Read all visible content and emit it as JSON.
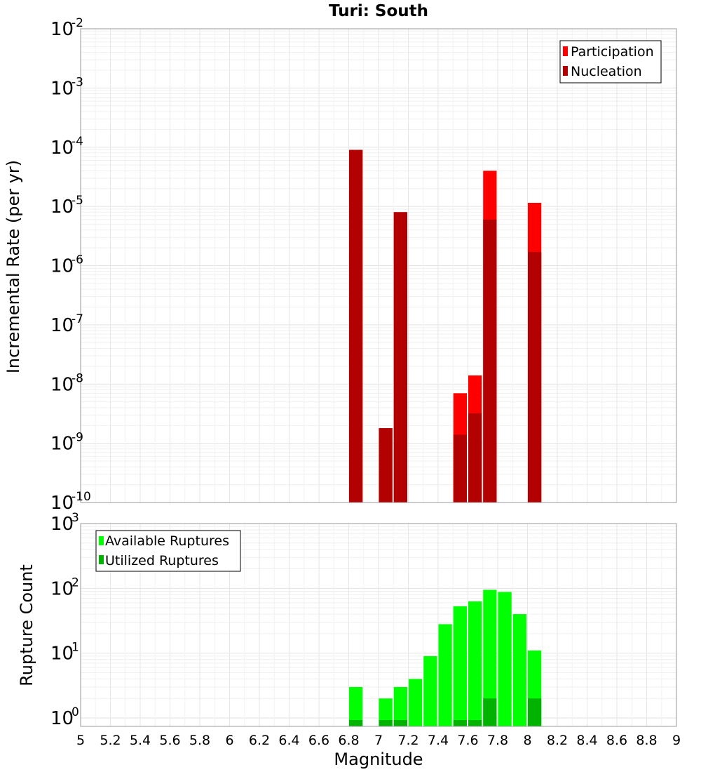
{
  "chart_data": [
    {
      "type": "bar",
      "title": "Turi: South",
      "xlabel": "Magnitude",
      "ylabel": "Incremental Rate (per yr)",
      "yscale": "log",
      "ylim_exp": [
        -10,
        -2
      ],
      "xlim": [
        5,
        9
      ],
      "grid": true,
      "legend_position": "top-right",
      "x": [
        6.85,
        7.05,
        7.15,
        7.55,
        7.65,
        7.75,
        8.05
      ],
      "series": [
        {
          "name": "Participation",
          "color": "#ff0000",
          "values": [
            9e-05,
            1.8e-09,
            8e-06,
            7e-09,
            1.4e-08,
            4e-05,
            1.15e-05
          ]
        },
        {
          "name": "Nucleation",
          "color": "#b30000",
          "values": [
            9e-05,
            1.8e-09,
            8e-06,
            1.4e-09,
            3.2e-09,
            6e-06,
            1.7e-06
          ]
        }
      ]
    },
    {
      "type": "bar",
      "xlabel": "Magnitude",
      "ylabel": "Rupture Count",
      "yscale": "log",
      "ylim_exp": [
        0,
        3
      ],
      "xlim": [
        5,
        9
      ],
      "grid": true,
      "legend_position": "top-left",
      "x": [
        6.85,
        7.05,
        7.15,
        7.25,
        7.35,
        7.45,
        7.55,
        7.65,
        7.75,
        7.85,
        7.95,
        8.05
      ],
      "series": [
        {
          "name": "Available Ruptures",
          "color": "#00ff00",
          "values": [
            3,
            2,
            3,
            4,
            9,
            28,
            53,
            63,
            95,
            88,
            40,
            11
          ]
        },
        {
          "name": "Utilized Ruptures",
          "color": "#00b300",
          "values": [
            1,
            1,
            1,
            0,
            0,
            0,
            1,
            1,
            2,
            0,
            0,
            2
          ]
        }
      ]
    }
  ],
  "x_ticks": [
    "5",
    "5.2",
    "5.4",
    "5.6",
    "5.8",
    "6",
    "6.2",
    "6.4",
    "6.6",
    "6.8",
    "7",
    "7.2",
    "7.4",
    "7.6",
    "7.8",
    "8",
    "8.2",
    "8.4",
    "8.6",
    "8.8",
    "9"
  ]
}
